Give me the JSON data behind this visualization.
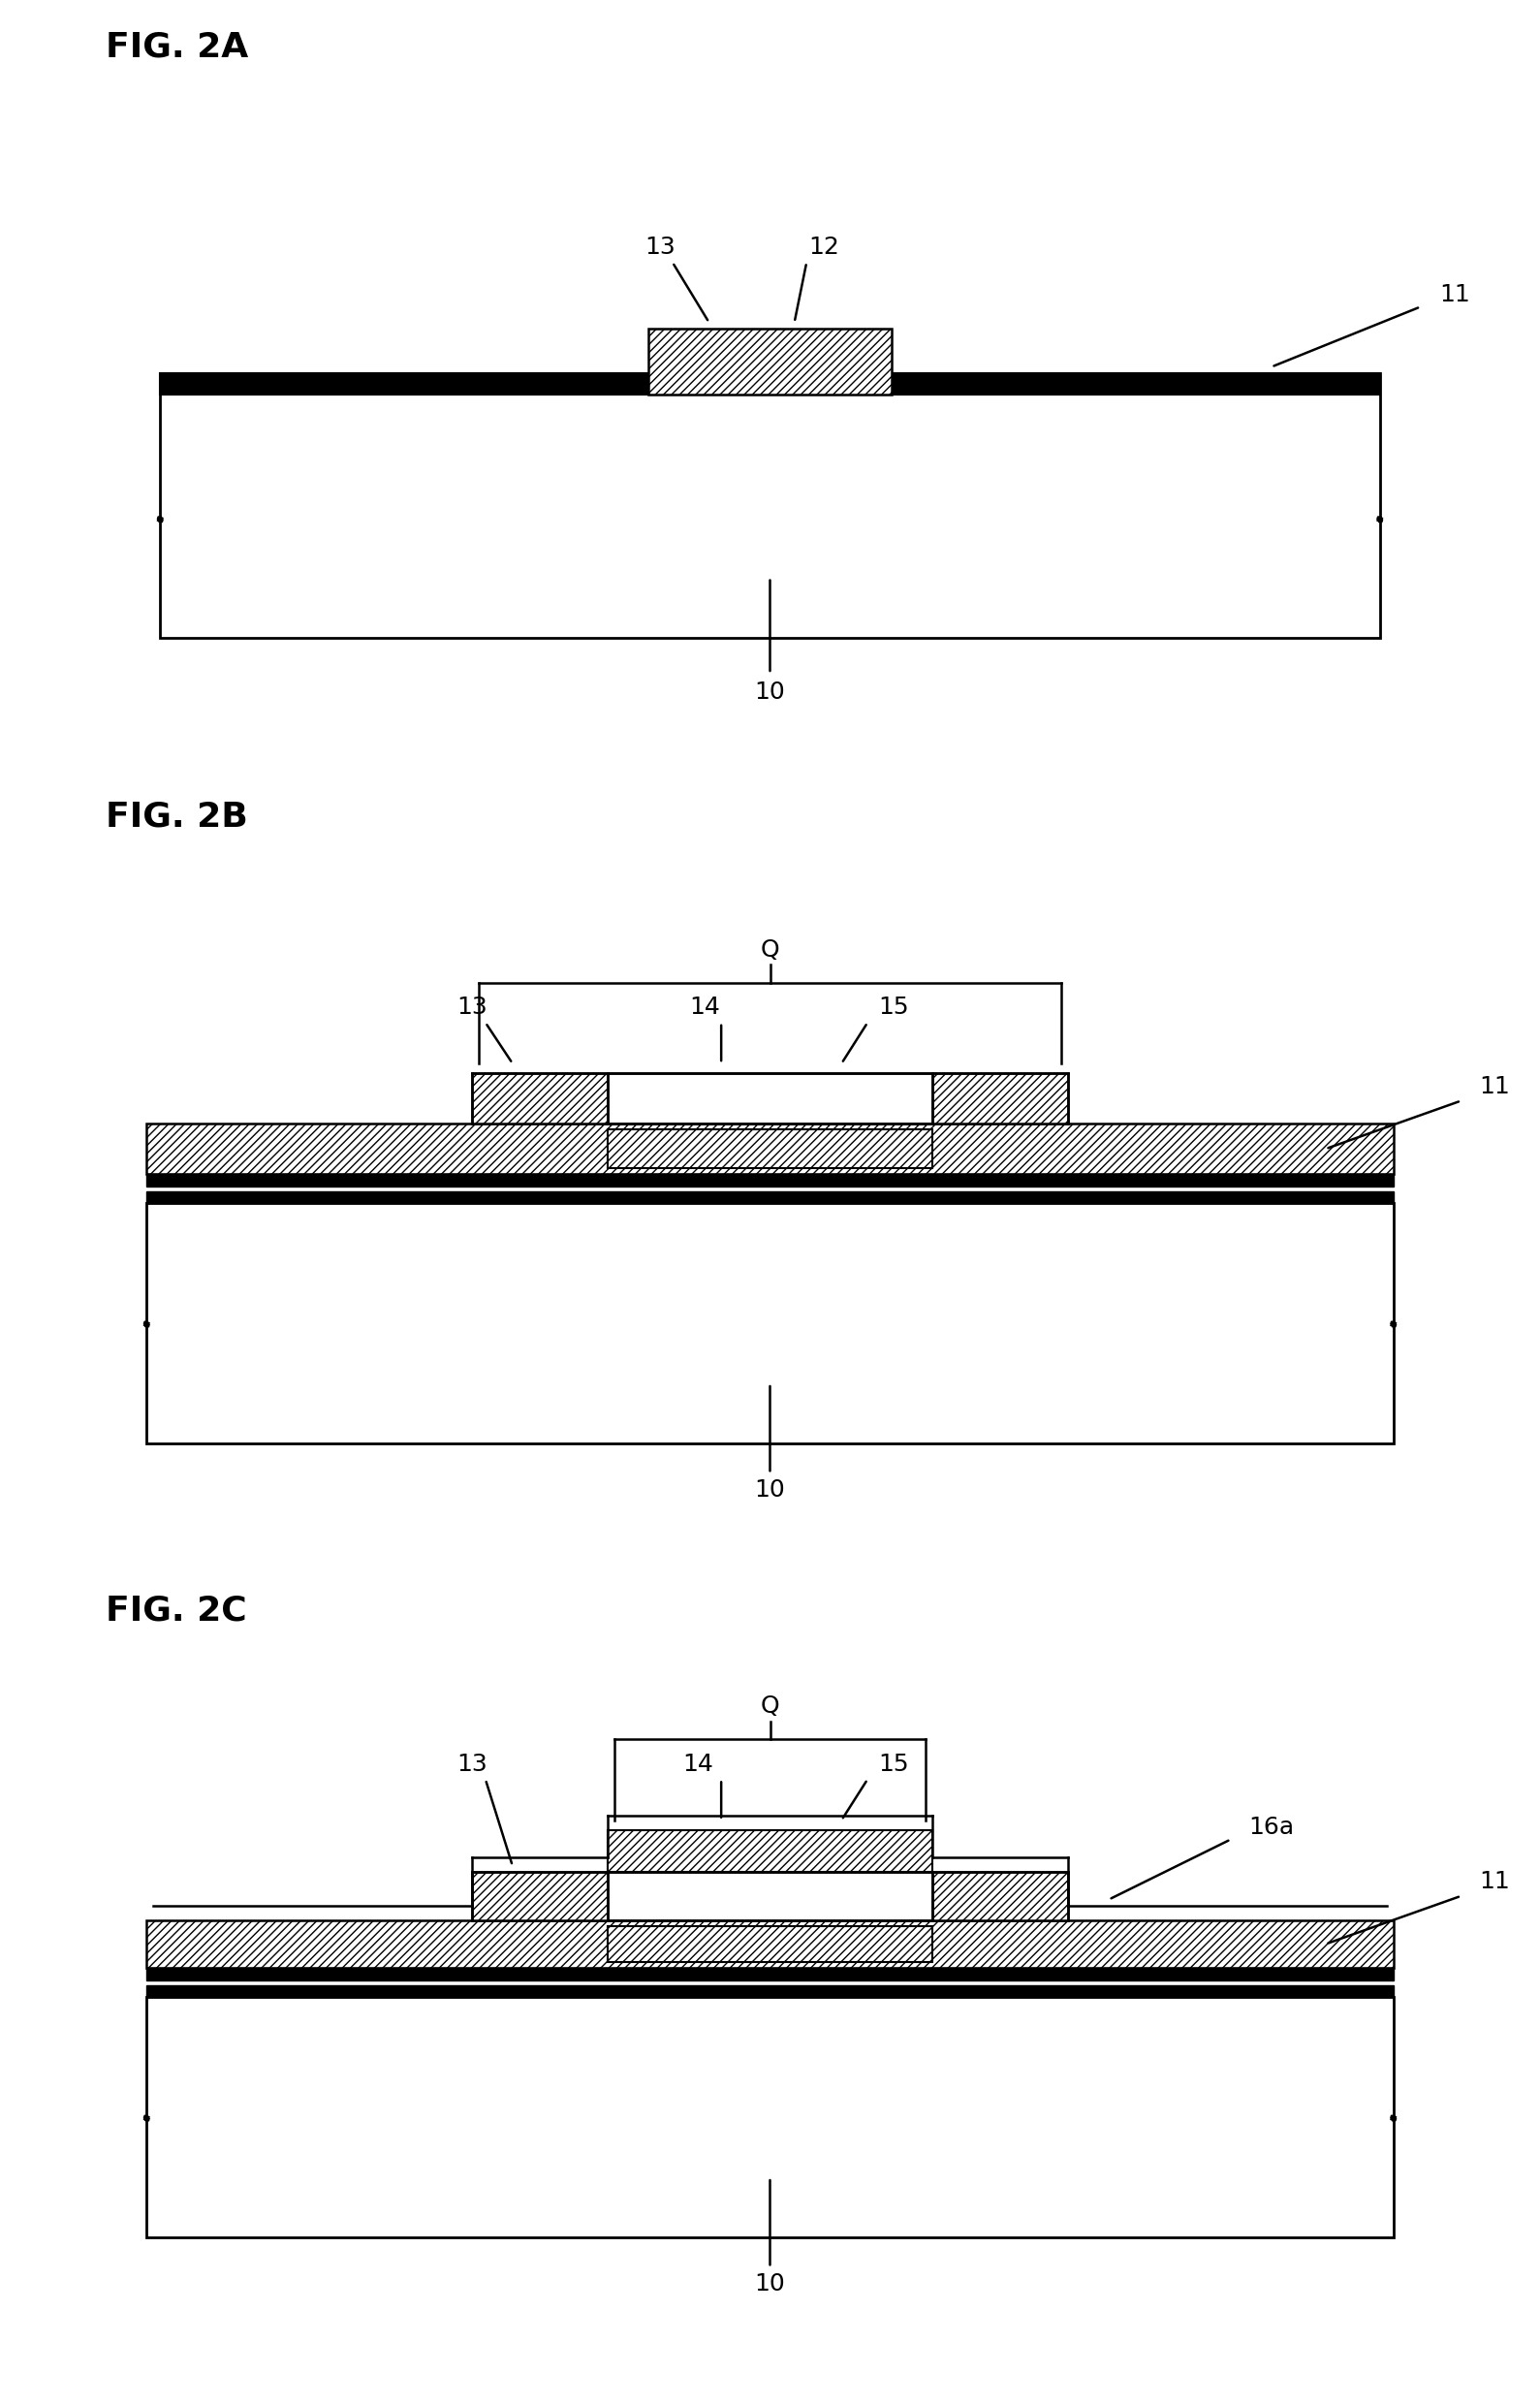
{
  "fig_title_2a": "FIG. 2A",
  "fig_title_2b": "FIG. 2B",
  "fig_title_2c": "FIG. 2C",
  "bg_color": "#ffffff",
  "line_color": "#000000",
  "hatch_pattern": "///",
  "label_fontsize": 18,
  "title_fontsize": 26
}
